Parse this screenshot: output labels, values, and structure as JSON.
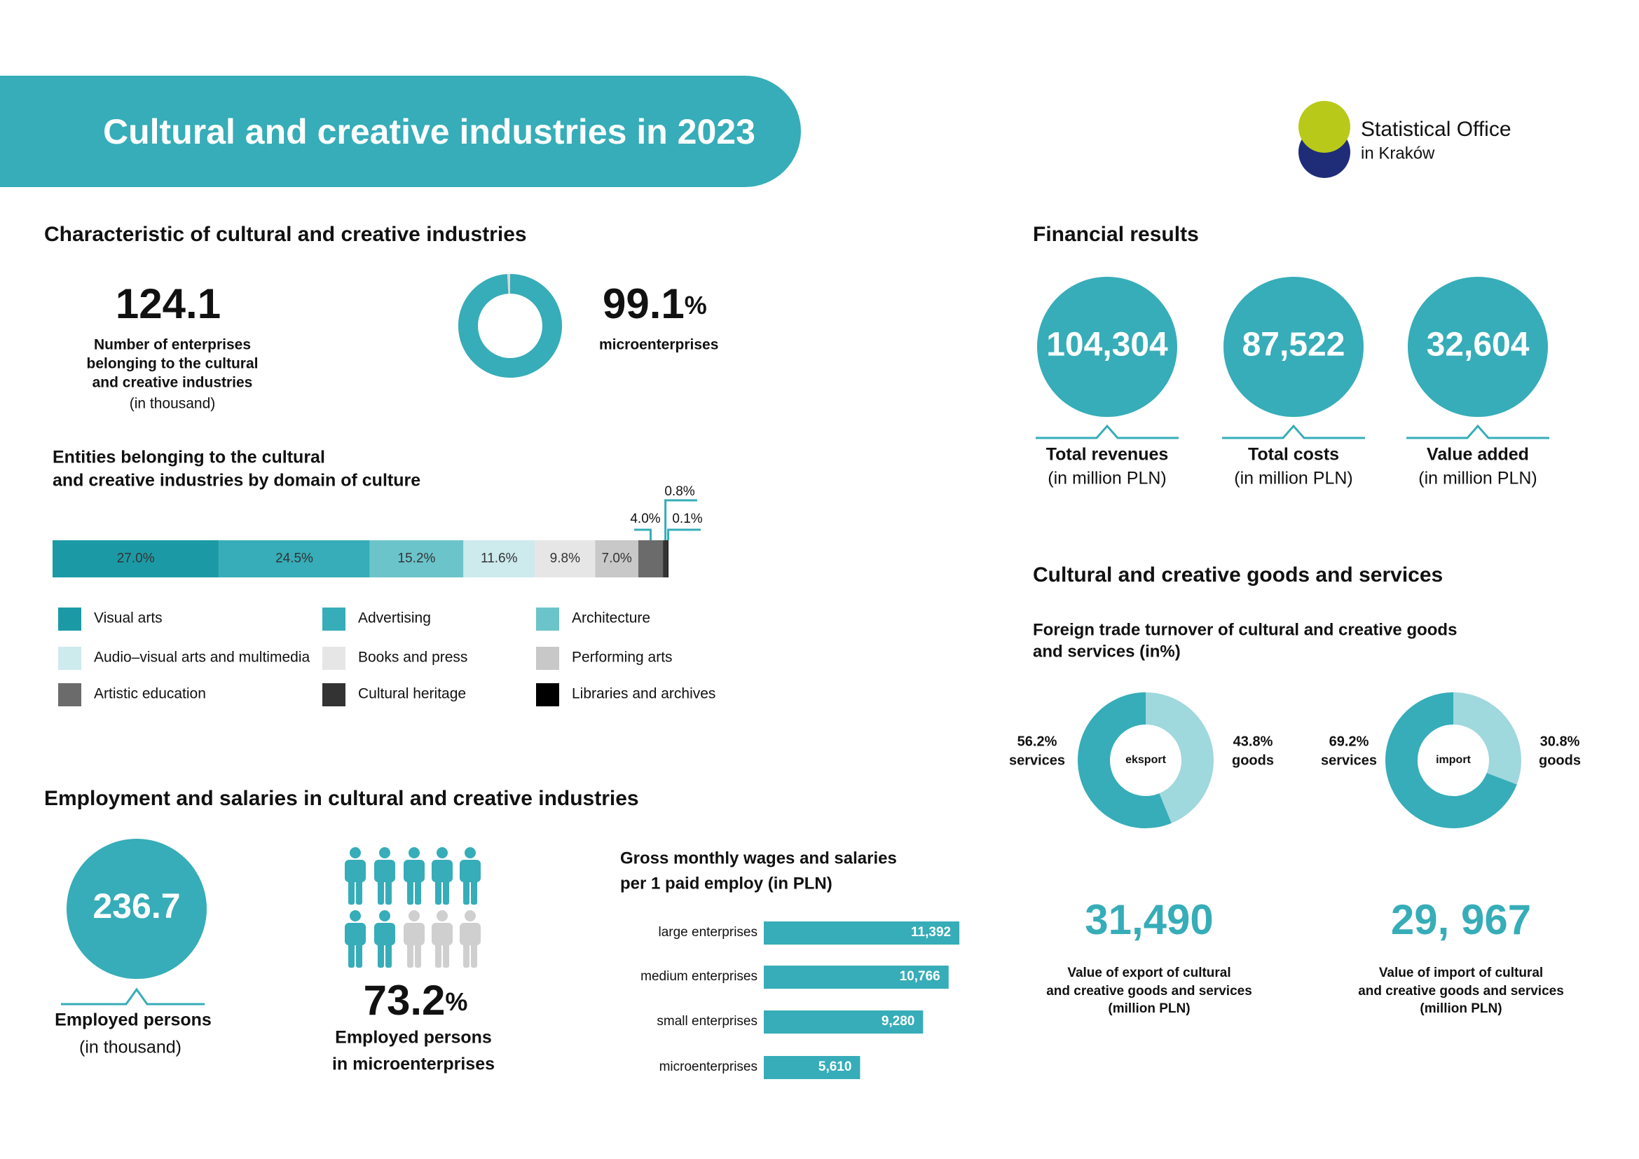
{
  "header": {
    "title": "Cultural and creative industries in 2023",
    "logo": [
      "Statistical Office",
      "in Kraków"
    ]
  },
  "characteristic": {
    "heading": "Characteristic of cultural and creative industries",
    "enterprises": {
      "value": "124.1",
      "lines": [
        "Number of enterprises",
        "belonging to the cultural",
        "and creative industries",
        "(in thousand)"
      ]
    },
    "micro": {
      "value": 99.1,
      "unit": "%",
      "label": "microenterprises",
      "color": "#36adb8"
    }
  },
  "domains": {
    "heading": [
      "Entities belonging to the cultural",
      "and creative industries by domain of culture"
    ],
    "segments": [
      {
        "name": "Visual arts",
        "color": "#1b9aa6",
        "value": 27.0,
        "label": "27.0%"
      },
      {
        "name": "Advertising",
        "color": "#36adb8",
        "value": 24.5,
        "label": "24.5%"
      },
      {
        "name": "Architecture",
        "color": "#6cc4cb",
        "value": 15.2,
        "label": "15.2%"
      },
      {
        "name": "Audio–visual arts and multimedia",
        "color": "#cdeaed",
        "value": 11.6,
        "label": "11.6%"
      },
      {
        "name": "Books and press",
        "color": "#e6e6e6",
        "value": 9.8,
        "label": "9.8%"
      },
      {
        "name": "Performing arts",
        "color": "#c8c8c8",
        "value": 7.0,
        "label": "7.0%"
      },
      {
        "name": "Artistic education",
        "color": "#6b6b6b",
        "value": 4.0,
        "label": "4.0%"
      },
      {
        "name": "Cultural heritage",
        "color": "#333333",
        "value": 0.8,
        "label": "0.8%"
      },
      {
        "name": "Libraries and archives",
        "color": "#000000",
        "value": 0.1,
        "label": "0.1%"
      }
    ]
  },
  "employment": {
    "heading": "Employment and salaries in cultural and creative industries",
    "employed": {
      "value": "236.7",
      "label": "Employed persons",
      "note": "(in thousand)"
    },
    "micro_share": {
      "value": "73.2",
      "unit": "%",
      "lines": [
        "Employed persons",
        "in microenterprises"
      ]
    },
    "wages": {
      "heading": [
        "Gross monthly wages and salaries",
        "per 1 paid employ (in PLN)"
      ],
      "color": "#36adb8",
      "bars": [
        {
          "name": "large enterprises",
          "value": 11392,
          "label": "11,392"
        },
        {
          "name": "medium enterprises",
          "value": 10766,
          "label": "10,766"
        },
        {
          "name": "small enterprises",
          "value": 9280,
          "label": "9,280"
        },
        {
          "name": "microenterprises",
          "value": 5610,
          "label": "5,610"
        }
      ]
    }
  },
  "financial": {
    "heading": "Financial results",
    "items": [
      {
        "value": "104,304",
        "label": "Total revenues",
        "note": "(in million PLN)"
      },
      {
        "value": "87,522",
        "label": "Total costs",
        "note": "(in million PLN)"
      },
      {
        "value": "32,604",
        "label": "Value added",
        "note": "(in million PLN)"
      }
    ]
  },
  "goods": {
    "heading": "Cultural and creative goods and services",
    "subheading": [
      "Foreign trade turnover of cultural and creative goods",
      "and services (in%)"
    ],
    "donuts": [
      {
        "center": "eksport",
        "parts": [
          {
            "name": "services",
            "value": 56.2,
            "label": "56.2%",
            "color": "#36adb8"
          },
          {
            "name": "goods",
            "value": 43.8,
            "label": "43.8%",
            "color": "#9fd8dd"
          }
        ]
      },
      {
        "center": "import",
        "parts": [
          {
            "name": "services",
            "value": 69.2,
            "label": "69.2%",
            "color": "#36adb8"
          },
          {
            "name": "goods",
            "value": 30.8,
            "label": "30.8%",
            "color": "#9fd8dd"
          }
        ]
      }
    ],
    "totals": [
      {
        "value": "31,490",
        "lines": [
          "Value of export of cultural",
          "and creative goods and services",
          "(million PLN)"
        ]
      },
      {
        "value": "29, 967",
        "lines": [
          "Value of import of cultural",
          "and creative goods and services",
          "(million PLN)"
        ]
      }
    ]
  }
}
